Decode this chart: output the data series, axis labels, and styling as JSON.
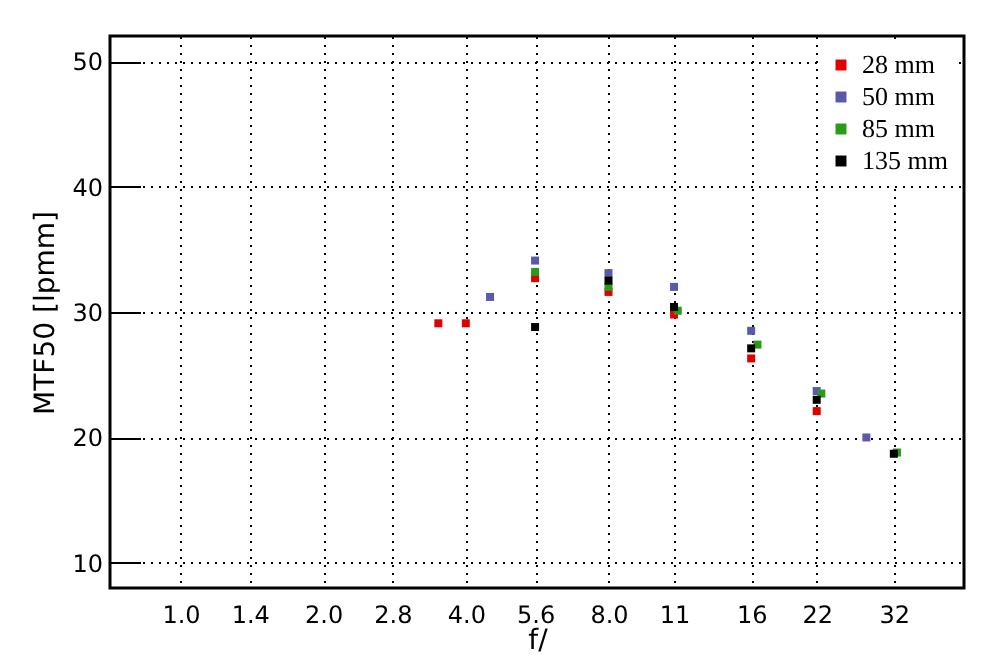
{
  "chart_data": {
    "type": "scatter",
    "xlabel": "f/",
    "ylabel": "MTF50 [lpmm]",
    "log": "x",
    "grid": true,
    "legend": "top right",
    "marker": "square",
    "xlim": [
      0.71,
      45
    ],
    "xticks": [
      {
        "value": 1,
        "label": "1.0"
      },
      1.4,
      {
        "value": 2,
        "label": "2.0"
      },
      2.8,
      {
        "value": 4,
        "label": "4.0"
      },
      5.6,
      {
        "value": 8,
        "label": "8.0"
      },
      11,
      16,
      22,
      32
    ],
    "ylim": [
      8,
      52
    ],
    "yticks": [
      10,
      20,
      30,
      40,
      50
    ],
    "series": [
      {
        "name": "28 mm",
        "color": "#e00000",
        "x": [
          3.5,
          4,
          5.6,
          8,
          11,
          16,
          22
        ],
        "values": [
          29.1,
          29.1,
          32.7,
          31.6,
          29.8,
          26.3,
          22.1
        ]
      },
      {
        "name": "50 mm",
        "color": "#5a5aa8",
        "x": [
          4.5,
          5.6,
          8,
          11,
          16,
          22,
          28
        ],
        "values": [
          31.2,
          34.1,
          33.1,
          32.0,
          28.5,
          23.7,
          20.0
        ]
      },
      {
        "name": "85 mm",
        "color": "#2a9a1a",
        "x": [
          5.6,
          8,
          11.2,
          16.5,
          22.5,
          32.5
        ],
        "values": [
          33.2,
          32.0,
          30.1,
          27.4,
          23.5,
          18.8
        ]
      },
      {
        "name": "135 mm",
        "color": "#000000",
        "x": [
          5.6,
          8,
          11,
          16,
          22,
          32
        ],
        "values": [
          28.8,
          32.5,
          30.4,
          27.1,
          23.0,
          18.7
        ]
      }
    ]
  }
}
